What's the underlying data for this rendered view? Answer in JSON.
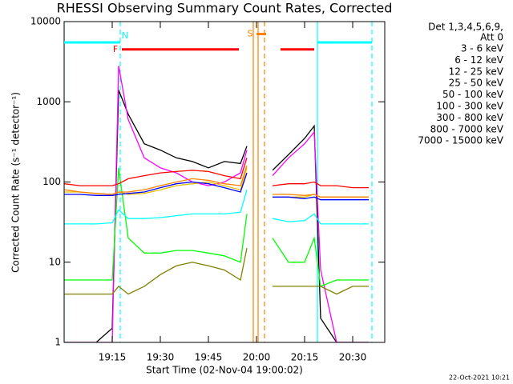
{
  "chart_data": {
    "type": "line",
    "title": "RHESSI Observing Summary Count Rates, Corrected",
    "x_label": "Start Time (02-Nov-04 19:00:02)",
    "y_label": "Corrected Count Rate (s⁻¹ detector⁻¹)",
    "legend_header": [
      "Det 1,3,4,5,6,9,",
      "Att 0"
    ],
    "timestamp": "22-Oct-2021 10:21",
    "log_y": true,
    "legend": "outside-right",
    "xlim": [
      0,
      100
    ],
    "ylim": [
      1,
      10000
    ],
    "xticks": [
      {
        "value": 15,
        "label": "19:15"
      },
      {
        "value": 30,
        "label": "19:30"
      },
      {
        "value": 45,
        "label": "19:45"
      },
      {
        "value": 60,
        "label": "20:00"
      },
      {
        "value": 75,
        "label": "20:15"
      },
      {
        "value": 90,
        "label": "20:30"
      }
    ],
    "yticks": [
      1,
      10,
      100,
      1000,
      10000
    ],
    "x": [
      0,
      5,
      10,
      15,
      17,
      20,
      25,
      30,
      35,
      40,
      45,
      50,
      55,
      57,
      60,
      65,
      70,
      75,
      78,
      80,
      85,
      90,
      95
    ],
    "series": [
      {
        "name": "3 - 6 keV",
        "color": "#000000",
        "values": [
          1,
          1,
          1,
          1.5,
          1400,
          700,
          300,
          250,
          200,
          180,
          150,
          180,
          170,
          280,
          null,
          140,
          220,
          350,
          500,
          2,
          1,
          1,
          1
        ]
      },
      {
        "name": "6 - 12 keV",
        "color": "#ff00ff",
        "values": [
          1,
          1,
          1,
          1,
          2800,
          600,
          200,
          150,
          130,
          100,
          90,
          100,
          130,
          250,
          null,
          120,
          200,
          300,
          420,
          8,
          1,
          1,
          1
        ]
      },
      {
        "name": "12 - 25 keV",
        "color": "#00ff00",
        "values": [
          6,
          6,
          6,
          6,
          150,
          20,
          13,
          13,
          14,
          14,
          13,
          12,
          10,
          40,
          null,
          20,
          10,
          10,
          20,
          5,
          6,
          6,
          6
        ]
      },
      {
        "name": "25 - 50 keV",
        "color": "#00ffff",
        "values": [
          30,
          30,
          30,
          31,
          45,
          35,
          35,
          36,
          38,
          40,
          40,
          40,
          42,
          80,
          null,
          35,
          32,
          33,
          40,
          30,
          30,
          30,
          30
        ]
      },
      {
        "name": "50 - 100 keV",
        "color": "#e6c000",
        "values": [
          75,
          75,
          72,
          70,
          75,
          70,
          72,
          80,
          90,
          95,
          100,
          90,
          80,
          150,
          null,
          65,
          65,
          65,
          70,
          65,
          65,
          65,
          65
        ]
      },
      {
        "name": "100 - 300 keV",
        "color": "#ff0000",
        "values": [
          95,
          90,
          90,
          90,
          95,
          110,
          120,
          130,
          135,
          140,
          135,
          120,
          110,
          200,
          null,
          90,
          95,
          95,
          100,
          90,
          90,
          85,
          85
        ]
      },
      {
        "name": "300 - 800 keV",
        "color": "#0000ff",
        "values": [
          70,
          70,
          68,
          68,
          70,
          72,
          75,
          85,
          95,
          100,
          95,
          85,
          75,
          130,
          null,
          65,
          65,
          62,
          65,
          60,
          60,
          60,
          60
        ]
      },
      {
        "name": "800 - 7000 keV",
        "color": "#ff8000",
        "values": [
          80,
          75,
          72,
          70,
          75,
          75,
          80,
          90,
          100,
          110,
          105,
          95,
          90,
          160,
          null,
          70,
          70,
          68,
          70,
          65,
          65,
          65,
          65
        ]
      },
      {
        "name": "7000 - 15000 keV",
        "color": "#808000",
        "values": [
          4,
          4,
          4,
          4,
          5,
          4,
          5,
          7,
          9,
          10,
          9,
          8,
          6,
          15,
          null,
          5,
          5,
          5,
          5,
          5,
          4,
          5,
          5
        ]
      }
    ],
    "flags": [
      {
        "label": "N",
        "color": "#00ffff",
        "level": 5500,
        "segments": [
          [
            0,
            17.5
          ],
          [
            79,
            96
          ]
        ]
      },
      {
        "label": "F",
        "color": "#ff0000",
        "level": 4500,
        "segments": [
          [
            18,
            54.5
          ],
          [
            67.5,
            78
          ]
        ]
      },
      {
        "label": "S",
        "color": "#ff8000",
        "level": 7000,
        "segments": [
          [
            60,
            63
          ]
        ]
      }
    ],
    "markers": [
      {
        "x": 0,
        "color": "#00ffff",
        "dashed": false
      },
      {
        "x": 17.5,
        "color": "#00ffff",
        "dashed": true
      },
      {
        "x": 79,
        "color": "#00ffff",
        "dashed": false
      },
      {
        "x": 96,
        "color": "#00ffff",
        "dashed": true
      },
      {
        "x": 59,
        "color": "#ff8000",
        "dashed": false
      },
      {
        "x": 60.5,
        "color": "#ff8000",
        "dashed": false
      },
      {
        "x": 62.5,
        "color": "#ff8000",
        "dashed": true
      }
    ]
  }
}
